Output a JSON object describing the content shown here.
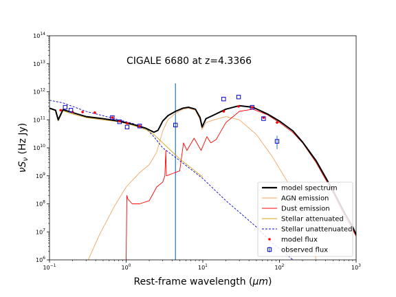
{
  "chart_data": {
    "type": "line",
    "title": "CIGALE 6680 at z=4.3366",
    "xlabel": "Rest-frame wavelength (",
    "xlabel_unit": "μm",
    "xlabel_close": ")",
    "ylabel": "νS",
    "ylabel_sub": "ν",
    "ylabel_unit": " (Hz Jy)",
    "xscale": "log",
    "yscale": "log",
    "xlim": [
      0.1,
      1000
    ],
    "ylim": [
      1000000.0,
      100000000000000.0
    ],
    "x_ticks": [
      {
        "base": "10",
        "exp": "−1"
      },
      {
        "base": "10",
        "exp": "0"
      },
      {
        "base": "10",
        "exp": "1"
      },
      {
        "base": "10",
        "exp": "2"
      },
      {
        "base": "10",
        "exp": "3"
      }
    ],
    "y_ticks": [
      {
        "base": "10",
        "exp": "6"
      },
      {
        "base": "10",
        "exp": "7"
      },
      {
        "base": "10",
        "exp": "8"
      },
      {
        "base": "10",
        "exp": "9"
      },
      {
        "base": "10",
        "exp": "10"
      },
      {
        "base": "10",
        "exp": "11"
      },
      {
        "base": "10",
        "exp": "12"
      },
      {
        "base": "10",
        "exp": "13"
      },
      {
        "base": "10",
        "exp": "14"
      }
    ],
    "legend_position": "lower-right",
    "legend": [
      {
        "label": "model spectrum",
        "color": "#000000",
        "style": "thick-line"
      },
      {
        "label": "AGN emission",
        "color": "#f4a460",
        "style": "line"
      },
      {
        "label": "Dust emission",
        "color": "#ff0000",
        "style": "line"
      },
      {
        "label": "Stellar attenuated",
        "color": "#d4a017",
        "style": "line"
      },
      {
        "label": "Stellar unattenuated",
        "color": "#0000cc",
        "style": "dashed"
      },
      {
        "label": "model flux",
        "color": "#ff0000",
        "style": "dot"
      },
      {
        "label": "observed flux",
        "color": "#0000cc",
        "style": "square"
      }
    ],
    "vline": {
      "x": 4.4,
      "ymin": 1000000.0,
      "ymax": 2000000000000.0,
      "color": "#1f77b4"
    },
    "series": [
      {
        "name": "model spectrum",
        "color": "#000000",
        "points": [
          [
            0.1,
            260000000000.0
          ],
          [
            0.12,
            220000000000.0
          ],
          [
            0.13,
            100000000000.0
          ],
          [
            0.15,
            230000000000.0
          ],
          [
            0.2,
            180000000000.0
          ],
          [
            0.3,
            130000000000.0
          ],
          [
            0.5,
            110000000000.0
          ],
          [
            0.8,
            90000000000.0
          ],
          [
            1.2,
            70000000000.0
          ],
          [
            1.8,
            50000000000.0
          ],
          [
            2.3,
            36000000000.0
          ],
          [
            2.6,
            42000000000.0
          ],
          [
            3.0,
            90000000000.0
          ],
          [
            3.5,
            140000000000.0
          ],
          [
            4.4,
            200000000000.0
          ],
          [
            5.5,
            260000000000.0
          ],
          [
            6.5,
            280000000000.0
          ],
          [
            8.0,
            240000000000.0
          ],
          [
            9.2,
            120000000000.0
          ],
          [
            9.8,
            55000000000.0
          ],
          [
            11.0,
            110000000000.0
          ],
          [
            14.0,
            150000000000.0
          ],
          [
            20.0,
            240000000000.0
          ],
          [
            30.0,
            320000000000.0
          ],
          [
            45.0,
            280000000000.0
          ],
          [
            70.0,
            160000000000.0
          ],
          [
            100.0,
            90000000000.0
          ],
          [
            150.0,
            40000000000.0
          ],
          [
            200.0,
            16000000000.0
          ],
          [
            300.0,
            3500000000.0
          ],
          [
            500.0,
            300000000.0
          ],
          [
            700.0,
            50000000.0
          ],
          [
            900.0,
            15000000.0
          ],
          [
            1000.0,
            8000000.0
          ]
        ]
      },
      {
        "name": "AGN emission",
        "color": "#f4a460",
        "points": [
          [
            0.32,
            1000000.0
          ],
          [
            0.45,
            8000000.0
          ],
          [
            0.7,
            80000000.0
          ],
          [
            1.0,
            400000000.0
          ],
          [
            1.5,
            1300000000.0
          ],
          [
            2.0,
            2500000000.0
          ],
          [
            2.5,
            7000000000.0
          ],
          [
            3.0,
            40000000000.0
          ],
          [
            3.5,
            100000000000.0
          ],
          [
            4.4,
            170000000000.0
          ],
          [
            5.5,
            240000000000.0
          ],
          [
            6.5,
            260000000000.0
          ],
          [
            8.0,
            220000000000.0
          ],
          [
            9.2,
            100000000000.0
          ],
          [
            9.8,
            45000000000.0
          ],
          [
            11.0,
            80000000000.0
          ],
          [
            14.0,
            100000000000.0
          ],
          [
            20.0,
            130000000000.0
          ],
          [
            30.0,
            100000000000.0
          ],
          [
            50.0,
            30000000000.0
          ],
          [
            80.0,
            5000000000.0
          ],
          [
            120.0,
            800000000.0
          ],
          [
            200.0,
            60000000.0
          ],
          [
            260.0,
            10000000.0
          ],
          [
            300.0,
            1000000.0
          ]
        ]
      },
      {
        "name": "Dust emission",
        "color": "#ff0000",
        "points": [
          [
            1.0,
            1000000.0
          ],
          [
            1.02,
            200000000.0
          ],
          [
            1.05,
            150000000.0
          ],
          [
            1.2,
            100000000.0
          ],
          [
            1.5,
            100000000.0
          ],
          [
            2.0,
            130000000.0
          ],
          [
            2.5,
            400000000.0
          ],
          [
            3.0,
            600000000.0
          ],
          [
            3.2,
            1000000000.0
          ],
          [
            3.29,
            8000000000.0
          ],
          [
            3.35,
            1000000000.0
          ],
          [
            4.0,
            1200000000.0
          ],
          [
            5.0,
            1500000000.0
          ],
          [
            5.6,
            15000000000.0
          ],
          [
            6.2,
            8000000000.0
          ],
          [
            7.7,
            22000000000.0
          ],
          [
            8.6,
            13000000000.0
          ],
          [
            9.5,
            8000000000.0
          ],
          [
            11.3,
            25000000000.0
          ],
          [
            12.7,
            15000000000.0
          ],
          [
            15.0,
            20000000000.0
          ],
          [
            20.0,
            80000000000.0
          ],
          [
            30.0,
            200000000000.0
          ],
          [
            45.0,
            240000000000.0
          ],
          [
            70.0,
            150000000000.0
          ],
          [
            100.0,
            80000000000.0
          ],
          [
            150.0,
            35000000000.0
          ],
          [
            200.0,
            15000000000.0
          ],
          [
            300.0,
            3000000000.0
          ],
          [
            500.0,
            250000000.0
          ],
          [
            700.0,
            40000000.0
          ],
          [
            900.0,
            12000000.0
          ],
          [
            1000.0,
            7000000.0
          ]
        ]
      },
      {
        "name": "Stellar attenuated",
        "color": "#d4a017",
        "points": [
          [
            0.1,
            250000000000.0
          ],
          [
            0.12,
            210000000000.0
          ],
          [
            0.13,
            90000000000.0
          ],
          [
            0.15,
            210000000000.0
          ],
          [
            0.2,
            160000000000.0
          ],
          [
            0.3,
            120000000000.0
          ],
          [
            0.5,
            100000000000.0
          ],
          [
            0.8,
            85000000000.0
          ],
          [
            1.2,
            65000000000.0
          ],
          [
            1.8,
            45000000000.0
          ],
          [
            2.3,
            30000000000.0
          ],
          [
            3.0,
            15000000000.0
          ],
          [
            5.0,
            4000000000.0
          ],
          [
            10.0,
            900000000.0
          ]
        ]
      },
      {
        "name": "Stellar unattenuated",
        "color": "#0000cc",
        "dashed": true,
        "points": [
          [
            0.1,
            500000000000.0
          ],
          [
            0.15,
            400000000000.0
          ],
          [
            0.2,
            300000000000.0
          ],
          [
            0.3,
            200000000000.0
          ],
          [
            0.5,
            140000000000.0
          ],
          [
            0.8,
            100000000000.0
          ],
          [
            1.2,
            75000000000.0
          ],
          [
            1.8,
            50000000000.0
          ],
          [
            2.3,
            25000000000.0
          ],
          [
            3.0,
            10000000000.0
          ],
          [
            5.0,
            3500000000.0
          ],
          [
            10.0,
            800000000.0
          ],
          [
            20.0,
            130000000.0
          ],
          [
            30.0,
            50000000.0
          ],
          [
            50.0,
            15000000.0
          ],
          [
            80.0,
            4000000.0
          ],
          [
            100.0,
            2500000.0
          ],
          [
            150.0,
            1000000.0
          ]
        ]
      }
    ],
    "model_flux": [
      [
        0.14,
        220000000000.0
      ],
      [
        0.2,
        190000000000.0
      ],
      [
        0.27,
        190000000000.0
      ],
      [
        0.39,
        180000000000.0
      ],
      [
        0.66,
        120000000000.0
      ],
      [
        0.82,
        90000000000.0
      ],
      [
        1.03,
        75000000000.0
      ],
      [
        1.5,
        60000000000.0
      ],
      [
        18.7,
        200000000000.0
      ],
      [
        29.3,
        300000000000.0
      ],
      [
        44.0,
        280000000000.0
      ],
      [
        62.0,
        120000000000.0
      ],
      [
        93.0,
        80000000000.0
      ]
    ],
    "observed_flux": [
      {
        "x": 0.16,
        "y": 280000000000.0
      },
      {
        "x": 0.19,
        "y": 220000000000.0
      },
      {
        "x": 0.66,
        "y": 120000000000.0
      },
      {
        "x": 0.82,
        "y": 85000000000.0
      },
      {
        "x": 1.03,
        "y": 55000000000.0
      },
      {
        "x": 1.5,
        "y": 60000000000.0
      },
      {
        "x": 4.4,
        "y": 65000000000.0
      },
      {
        "x": 18.7,
        "y": 550000000000.0
      },
      {
        "x": 29.3,
        "y": 650000000000.0
      },
      {
        "x": 44.0,
        "y": 280000000000.0
      },
      {
        "x": 62.0,
        "y": 110000000000.0
      },
      {
        "x": 93.0,
        "y": 17000000000.0,
        "err_lo": 9000000000.0,
        "err_hi": 27000000000.0
      }
    ]
  }
}
